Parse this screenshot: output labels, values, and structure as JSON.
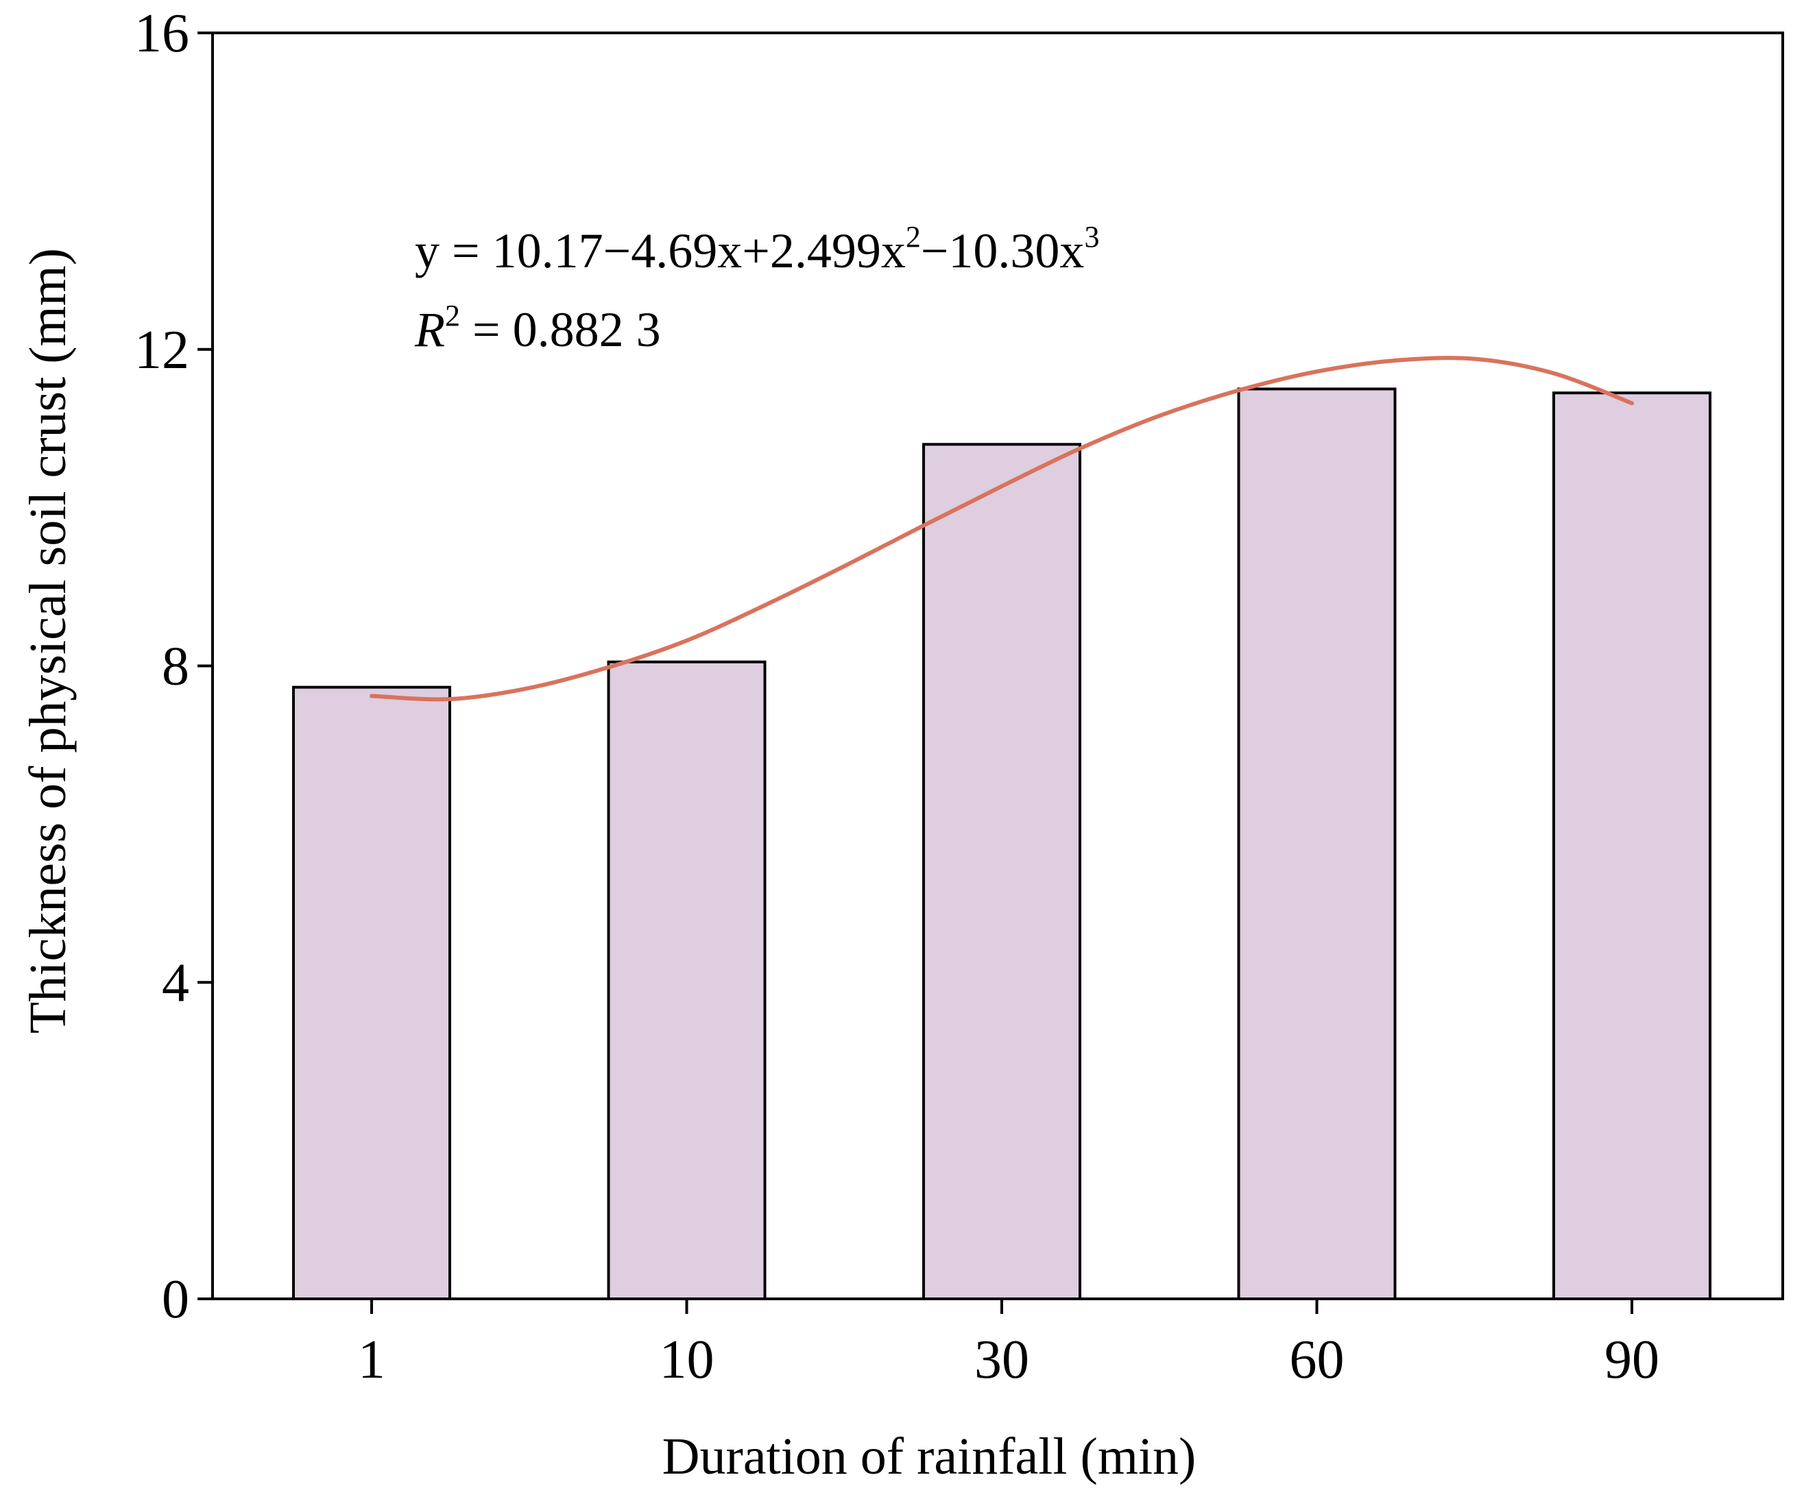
{
  "chart_data": {
    "type": "bar",
    "title": "",
    "xlabel": "Duration of rainfall (min)",
    "ylabel": "Thickness of physical soil crust (mm)",
    "categories": [
      "1",
      "10",
      "30",
      "60",
      "90"
    ],
    "values": [
      7.73,
      8.05,
      10.8,
      11.5,
      11.45
    ],
    "ylim": [
      0,
      16
    ],
    "yticks": [
      "0",
      "4",
      "8",
      "12",
      "16"
    ],
    "grid": false,
    "fit": {
      "type": "cubic",
      "equation_lead": "y = 10.17−4.69x+2.499x",
      "equation_sup1": "2",
      "equation_mid": "−10.30x",
      "equation_sup2": "3",
      "r2_label": "R",
      "r2_sup": "2",
      "r2_value": " = 0.882 3",
      "curve_points": [
        {
          "i": 0.0,
          "y": 7.62
        },
        {
          "i": 0.25,
          "y": 7.58
        },
        {
          "i": 0.5,
          "y": 7.72
        },
        {
          "i": 0.75,
          "y": 7.98
        },
        {
          "i": 1.0,
          "y": 8.32
        },
        {
          "i": 1.25,
          "y": 8.77
        },
        {
          "i": 1.5,
          "y": 9.26
        },
        {
          "i": 1.75,
          "y": 9.77
        },
        {
          "i": 2.0,
          "y": 10.27
        },
        {
          "i": 2.25,
          "y": 10.75
        },
        {
          "i": 2.5,
          "y": 11.16
        },
        {
          "i": 2.75,
          "y": 11.48
        },
        {
          "i": 3.0,
          "y": 11.72
        },
        {
          "i": 3.25,
          "y": 11.86
        },
        {
          "i": 3.5,
          "y": 11.88
        },
        {
          "i": 3.75,
          "y": 11.7
        },
        {
          "i": 4.0,
          "y": 11.32
        }
      ]
    },
    "colors": {
      "bar_fill": "#dfcde0",
      "bar_stroke": "#000000",
      "fit_line": "#d9735c"
    }
  }
}
